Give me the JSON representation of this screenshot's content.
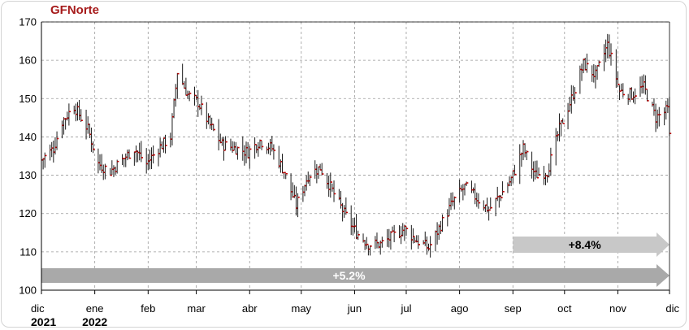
{
  "chart_data": {
    "type": "ohlc",
    "title": "GFNorte",
    "xlabel": "",
    "ylabel": "",
    "ylim": [
      100,
      170
    ],
    "yticks": [
      100,
      110,
      120,
      130,
      140,
      150,
      160,
      170
    ],
    "xlim": [
      "2021-12-01",
      "2022-12-01"
    ],
    "xticks": [
      {
        "date": "2021-12-01",
        "label": "dic",
        "year": "2021"
      },
      {
        "date": "2022-01-01",
        "label": "ene",
        "year": "2022"
      },
      {
        "date": "2022-02-01",
        "label": "feb",
        "year": ""
      },
      {
        "date": "2022-03-01",
        "label": "mar",
        "year": ""
      },
      {
        "date": "2022-04-01",
        "label": "abr",
        "year": ""
      },
      {
        "date": "2022-05-01",
        "label": "may",
        "year": ""
      },
      {
        "date": "2022-06-01",
        "label": "jun",
        "year": ""
      },
      {
        "date": "2022-07-01",
        "label": "jul",
        "year": ""
      },
      {
        "date": "2022-08-01",
        "label": "ago",
        "year": ""
      },
      {
        "date": "2022-09-01",
        "label": "sep",
        "year": ""
      },
      {
        "date": "2022-10-01",
        "label": "oct",
        "year": ""
      },
      {
        "date": "2022-11-01",
        "label": "nov",
        "year": ""
      },
      {
        "date": "2022-12-01",
        "label": "dic",
        "year": ""
      }
    ],
    "grid": true,
    "close_path": [
      [
        "2021-12-01",
        134
      ],
      [
        "2021-12-08",
        137
      ],
      [
        "2021-12-13",
        144
      ],
      [
        "2021-12-20",
        148
      ],
      [
        "2021-12-28",
        142
      ],
      [
        "2022-01-03",
        133
      ],
      [
        "2022-01-10",
        131
      ],
      [
        "2022-01-17",
        134
      ],
      [
        "2022-01-24",
        137
      ],
      [
        "2022-01-31",
        133
      ],
      [
        "2022-02-07",
        137
      ],
      [
        "2022-02-14",
        140
      ],
      [
        "2022-02-18",
        157
      ],
      [
        "2022-02-24",
        151
      ],
      [
        "2022-03-02",
        149
      ],
      [
        "2022-03-09",
        143
      ],
      [
        "2022-03-16",
        138
      ],
      [
        "2022-03-24",
        137
      ],
      [
        "2022-03-31",
        136
      ],
      [
        "2022-04-07",
        139
      ],
      [
        "2022-04-14",
        137
      ],
      [
        "2022-04-21",
        131
      ],
      [
        "2022-04-28",
        122
      ],
      [
        "2022-05-05",
        130
      ],
      [
        "2022-05-12",
        132
      ],
      [
        "2022-05-19",
        126
      ],
      [
        "2022-05-26",
        120
      ],
      [
        "2022-06-02",
        115
      ],
      [
        "2022-06-09",
        112
      ],
      [
        "2022-06-16",
        112
      ],
      [
        "2022-06-23",
        114
      ],
      [
        "2022-06-30",
        116
      ],
      [
        "2022-07-07",
        113
      ],
      [
        "2022-07-14",
        111
      ],
      [
        "2022-07-21",
        117
      ],
      [
        "2022-07-28",
        123
      ],
      [
        "2022-08-04",
        127
      ],
      [
        "2022-08-11",
        124
      ],
      [
        "2022-08-18",
        121
      ],
      [
        "2022-08-25",
        125
      ],
      [
        "2022-08-31",
        129
      ],
      [
        "2022-09-07",
        137
      ],
      [
        "2022-09-14",
        130
      ],
      [
        "2022-09-21",
        131
      ],
      [
        "2022-09-28",
        142
      ],
      [
        "2022-10-05",
        150
      ],
      [
        "2022-10-12",
        159
      ],
      [
        "2022-10-19",
        156
      ],
      [
        "2022-10-26",
        164
      ],
      [
        "2022-11-02",
        152
      ],
      [
        "2022-11-09",
        151
      ],
      [
        "2022-11-16",
        153
      ],
      [
        "2022-11-23",
        145
      ],
      [
        "2022-11-30",
        147
      ],
      [
        "2022-12-01",
        140
      ]
    ],
    "annotations": [
      {
        "label": "+5.2%",
        "start": "2021-12-01",
        "end": "2022-12-01"
      },
      {
        "label": "+8.4%",
        "start": "2022-09-01",
        "end": "2022-12-01"
      }
    ]
  }
}
